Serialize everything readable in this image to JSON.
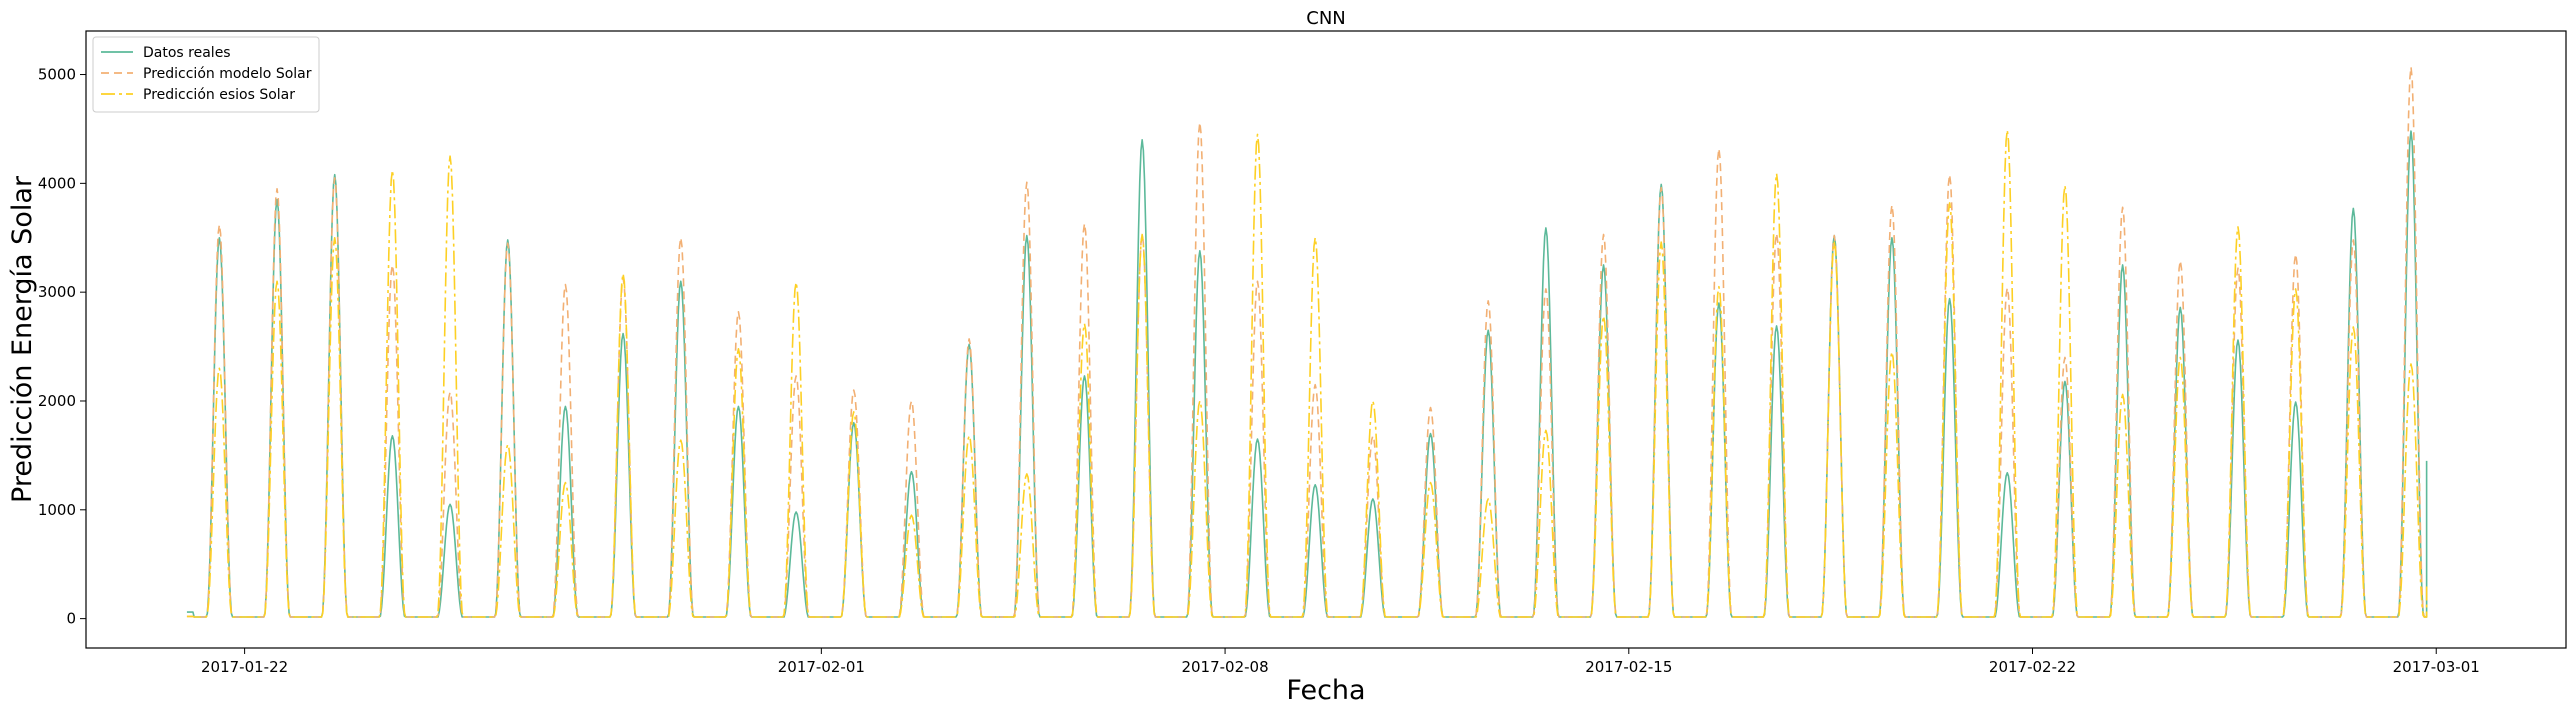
{
  "chart_data": {
    "type": "line",
    "title": "CNN",
    "xlabel": "Fecha",
    "ylabel": "Predicción Energía Solar",
    "ylim": [
      -270,
      5400
    ],
    "xlim": [
      "2017-01-19T06:00",
      "2017-03-03T06:00"
    ],
    "yticks": [
      0,
      1000,
      2000,
      3000,
      4000,
      5000
    ],
    "xticks": [
      "2017-01-22",
      "2017-02-01",
      "2017-02-08",
      "2017-02-15",
      "2017-02-22",
      "2017-03-01"
    ],
    "legend_position": "upper-left",
    "series": [
      {
        "name": "Datos reales",
        "color": "#5cb99a",
        "dash": "solid",
        "start_date": "2017-01-21",
        "peak_hour": 13,
        "last_day_end_hour": 20,
        "daily_peaks": [
          3500,
          3850,
          4080,
          1680,
          1050,
          3480,
          1950,
          2620,
          3100,
          1950,
          980,
          1800,
          1350,
          2520,
          3520,
          2230,
          4400,
          3380,
          1650,
          1230,
          1100,
          1700,
          2650,
          3590,
          3250,
          3990,
          2900,
          2690,
          3520,
          3500,
          2940,
          1340,
          2180,
          3250,
          2860,
          2560,
          1990,
          3770,
          4480
        ]
      },
      {
        "name": "Predicción modelo Solar",
        "color": "#f2b074",
        "dash": "8,5",
        "start_date": "2017-01-21",
        "peak_hour": 13,
        "last_day_end_hour": 20,
        "daily_peaks": [
          3620,
          3950,
          4050,
          3250,
          2080,
          3450,
          3070,
          3130,
          3500,
          2820,
          2230,
          2100,
          2000,
          2570,
          4010,
          3630,
          3530,
          4560,
          3100,
          2150,
          1680,
          1940,
          2920,
          3030,
          3530,
          3960,
          4320,
          3540,
          3520,
          3800,
          4080,
          3040,
          2400,
          3780,
          3290,
          3220,
          3350,
          3480,
          5070
        ]
      },
      {
        "name": "Predicción esios Solar",
        "color": "#fdd024",
        "dash": "14,4,3,4",
        "start_date": "2017-01-21",
        "peak_hour": 13,
        "last_day_end_hour": 20,
        "daily_peaks": [
          2300,
          3100,
          3500,
          4120,
          4250,
          1600,
          1250,
          3170,
          1640,
          2480,
          3090,
          1900,
          950,
          1680,
          1330,
          2710,
          3530,
          2000,
          4450,
          3500,
          2000,
          1250,
          1100,
          1730,
          2780,
          3460,
          3050,
          4090,
          3460,
          2450,
          3820,
          4490,
          3980,
          2060,
          2400,
          3600,
          3030,
          2680,
          2340
        ]
      }
    ]
  }
}
